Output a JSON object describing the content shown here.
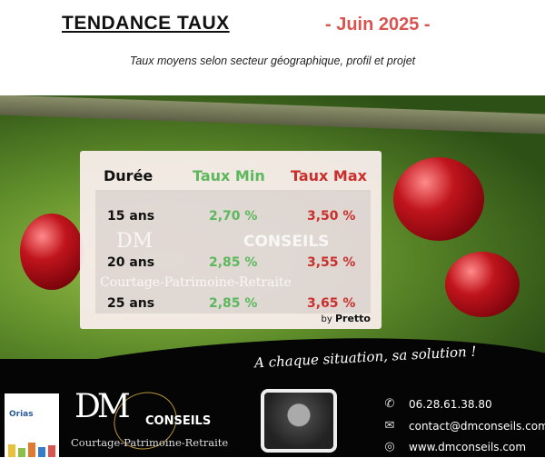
{
  "header": {
    "title": "TENDANCE TAUX",
    "month": "- Juin 2025 -",
    "subtitle": "Taux moyens selon secteur géographique, profil et projet"
  },
  "table": {
    "headers": [
      "Durée",
      "Taux Min",
      "Taux Max"
    ],
    "rows": [
      {
        "duree": "15 ans",
        "min": "2,70 %",
        "max": "3,50 %"
      },
      {
        "duree": "20 ans",
        "min": "2,85 %",
        "max": "3,55 %"
      },
      {
        "duree": "25 ans",
        "min": "2,85 %",
        "max": "3,65 %"
      }
    ],
    "source_by": "by",
    "source": "Pretto",
    "watermark": {
      "dm": "DM",
      "conseils": "CONSEILS",
      "tagline": "Courtage-Patrimoine-Retraite"
    }
  },
  "footer": {
    "slogan": "A chaque situation, sa solution !",
    "orias": "Orias",
    "logo": {
      "dm": "DM",
      "conseils": "CONSEILS",
      "tagline": "Courtage-Patrimoine-Retraite"
    },
    "phone": "06.28.61.38.80",
    "email": "contact@dmconseils.com",
    "website": "www.dmconseils.com"
  },
  "colors": {
    "min": "#5cb85c",
    "max": "#c9302c",
    "month": "#d9534f"
  },
  "icons": {
    "phone": "phone-icon",
    "email": "email-icon",
    "web": "globe-icon"
  }
}
